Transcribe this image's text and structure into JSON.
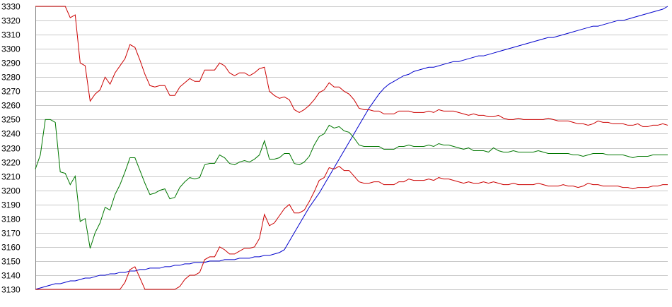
{
  "chart_data": {
    "type": "line",
    "title": "",
    "xlabel": "",
    "ylabel": "",
    "ylim": [
      3130,
      3330
    ],
    "yticks": [
      3330,
      3320,
      3310,
      3300,
      3290,
      3280,
      3270,
      3260,
      3250,
      3240,
      3230,
      3220,
      3210,
      3200,
      3190,
      3180,
      3170,
      3160,
      3150,
      3140,
      3130
    ],
    "grid": true,
    "x": [
      0,
      1,
      2,
      3,
      4,
      5,
      6,
      7,
      8,
      9,
      10,
      11,
      12,
      13,
      14,
      15,
      16,
      17,
      18,
      19,
      20,
      21,
      22,
      23,
      24,
      25,
      26,
      27,
      28,
      29,
      30,
      31,
      32,
      33,
      34,
      35,
      36,
      37,
      38,
      39,
      40,
      41,
      42,
      43,
      44,
      45,
      46,
      47,
      48,
      49,
      50,
      51,
      52,
      53,
      54,
      55,
      56,
      57,
      58,
      59,
      60,
      61,
      62,
      63,
      64,
      65,
      66,
      67,
      68,
      69,
      70,
      71,
      72,
      73,
      74,
      75,
      76,
      77,
      78,
      79,
      80,
      81,
      82,
      83,
      84,
      85,
      86,
      87,
      88,
      89,
      90,
      91,
      92,
      93,
      94,
      95,
      96,
      97,
      98,
      99,
      100,
      101,
      102,
      103,
      104,
      105,
      106,
      107,
      108,
      109,
      110,
      111,
      112,
      113,
      114,
      115,
      116,
      117,
      118,
      119,
      120,
      121,
      122,
      123,
      124,
      125,
      126,
      127
    ],
    "series": [
      {
        "color": "#0000cc",
        "values": [
          3130,
          3131,
          3132,
          3133,
          3134,
          3134,
          3135,
          3136,
          3136,
          3137,
          3138,
          3138,
          3139,
          3140,
          3140,
          3141,
          3141,
          3142,
          3142,
          3143,
          3143,
          3144,
          3144,
          3145,
          3145,
          3145,
          3146,
          3146,
          3147,
          3147,
          3148,
          3148,
          3149,
          3149,
          3149,
          3150,
          3150,
          3150,
          3151,
          3151,
          3151,
          3152,
          3152,
          3152,
          3153,
          3153,
          3154,
          3154,
          3155,
          3156,
          3158,
          3164,
          3170,
          3176,
          3182,
          3188,
          3193,
          3198,
          3204,
          3210,
          3216,
          3222,
          3228,
          3234,
          3240,
          3246,
          3252,
          3258,
          3263,
          3268,
          3272,
          3275,
          3277,
          3279,
          3281,
          3282,
          3284,
          3285,
          3286,
          3287,
          3287,
          3288,
          3289,
          3290,
          3291,
          3291,
          3292,
          3293,
          3294,
          3295,
          3295,
          3296,
          3297,
          3298,
          3299,
          3300,
          3301,
          3302,
          3303,
          3304,
          3305,
          3306,
          3307,
          3308,
          3308,
          3309,
          3310,
          3311,
          3312,
          3313,
          3314,
          3315,
          3316,
          3316,
          3317,
          3318,
          3319,
          3320,
          3320,
          3321,
          3322,
          3323,
          3324,
          3325,
          3326,
          3327,
          3328,
          3330
        ]
      },
      {
        "color": "#cc0000",
        "values": [
          3330,
          3330,
          3330,
          3330,
          3330,
          3330,
          3330,
          3322,
          3324,
          3290,
          3288,
          3263,
          3268,
          3271,
          3280,
          3275,
          3283,
          3288,
          3293,
          3303,
          3301,
          3292,
          3282,
          3274,
          3273,
          3274,
          3274,
          3267,
          3267,
          3273,
          3276,
          3279,
          3277,
          3277,
          3285,
          3285,
          3285,
          3290,
          3288,
          3283,
          3281,
          3283,
          3283,
          3281,
          3283,
          3286,
          3287,
          3270,
          3267,
          3265,
          3266,
          3264,
          3257,
          3255,
          3257,
          3260,
          3264,
          3269,
          3271,
          3276,
          3273,
          3273,
          3270,
          3268,
          3264,
          3258,
          3257,
          3257,
          3256,
          3256,
          3254,
          3254,
          3254,
          3256,
          3256,
          3256,
          3255,
          3255,
          3255,
          3256,
          3255,
          3257,
          3256,
          3256,
          3256,
          3255,
          3254,
          3253,
          3254,
          3253,
          3253,
          3252,
          3252,
          3253,
          3251,
          3250,
          3250,
          3251,
          3250,
          3250,
          3250,
          3250,
          3250,
          3251,
          3250,
          3249,
          3249,
          3249,
          3248,
          3247,
          3247,
          3246,
          3247,
          3249,
          3248,
          3248,
          3247,
          3247,
          3247,
          3246,
          3246,
          3247,
          3245,
          3245,
          3246,
          3246,
          3247,
          3246
        ]
      },
      {
        "color": "#007700",
        "values": [
          3215,
          3225,
          3250,
          3250,
          3248,
          3213,
          3212,
          3204,
          3210,
          3178,
          3180,
          3159,
          3170,
          3177,
          3188,
          3186,
          3197,
          3204,
          3213,
          3223,
          3223,
          3214,
          3205,
          3197,
          3198,
          3200,
          3201,
          3194,
          3195,
          3202,
          3206,
          3209,
          3208,
          3209,
          3218,
          3219,
          3219,
          3225,
          3223,
          3219,
          3218,
          3220,
          3221,
          3220,
          3222,
          3225,
          3235,
          3222,
          3222,
          3223,
          3226,
          3226,
          3219,
          3218,
          3220,
          3224,
          3232,
          3238,
          3240,
          3246,
          3244,
          3245,
          3242,
          3241,
          3237,
          3232,
          3231,
          3231,
          3231,
          3231,
          3229,
          3229,
          3229,
          3231,
          3231,
          3232,
          3231,
          3231,
          3231,
          3232,
          3231,
          3233,
          3232,
          3232,
          3231,
          3230,
          3229,
          3230,
          3228,
          3228,
          3228,
          3227,
          3230,
          3228,
          3227,
          3227,
          3228,
          3227,
          3227,
          3227,
          3227,
          3228,
          3227,
          3226,
          3226,
          3226,
          3226,
          3226,
          3225,
          3225,
          3224,
          3225,
          3226,
          3226,
          3226,
          3225,
          3225,
          3225,
          3225,
          3224,
          3223,
          3224,
          3224,
          3224,
          3225,
          3225,
          3225,
          3225
        ]
      },
      {
        "color": "#cc0000",
        "values": [
          3130,
          3130,
          3130,
          3130,
          3130,
          3130,
          3130,
          3130,
          3130,
          3130,
          3130,
          3130,
          3130,
          3130,
          3130,
          3130,
          3130,
          3130,
          3135,
          3144,
          3146,
          3138,
          3130,
          3130,
          3130,
          3130,
          3130,
          3130,
          3130,
          3132,
          3137,
          3140,
          3140,
          3142,
          3151,
          3153,
          3153,
          3160,
          3158,
          3155,
          3155,
          3157,
          3159,
          3159,
          3160,
          3166,
          3183,
          3175,
          3177,
          3182,
          3187,
          3190,
          3184,
          3184,
          3186,
          3192,
          3199,
          3207,
          3209,
          3216,
          3215,
          3217,
          3214,
          3214,
          3210,
          3206,
          3205,
          3205,
          3206,
          3206,
          3204,
          3204,
          3204,
          3206,
          3206,
          3208,
          3207,
          3207,
          3207,
          3208,
          3207,
          3209,
          3208,
          3208,
          3207,
          3206,
          3205,
          3206,
          3205,
          3205,
          3206,
          3205,
          3206,
          3205,
          3204,
          3204,
          3205,
          3204,
          3204,
          3204,
          3204,
          3205,
          3204,
          3203,
          3203,
          3203,
          3204,
          3203,
          3203,
          3202,
          3203,
          3205,
          3204,
          3204,
          3203,
          3203,
          3203,
          3203,
          3202,
          3202,
          3201,
          3202,
          3202,
          3202,
          3203,
          3203,
          3204,
          3204
        ]
      }
    ]
  }
}
